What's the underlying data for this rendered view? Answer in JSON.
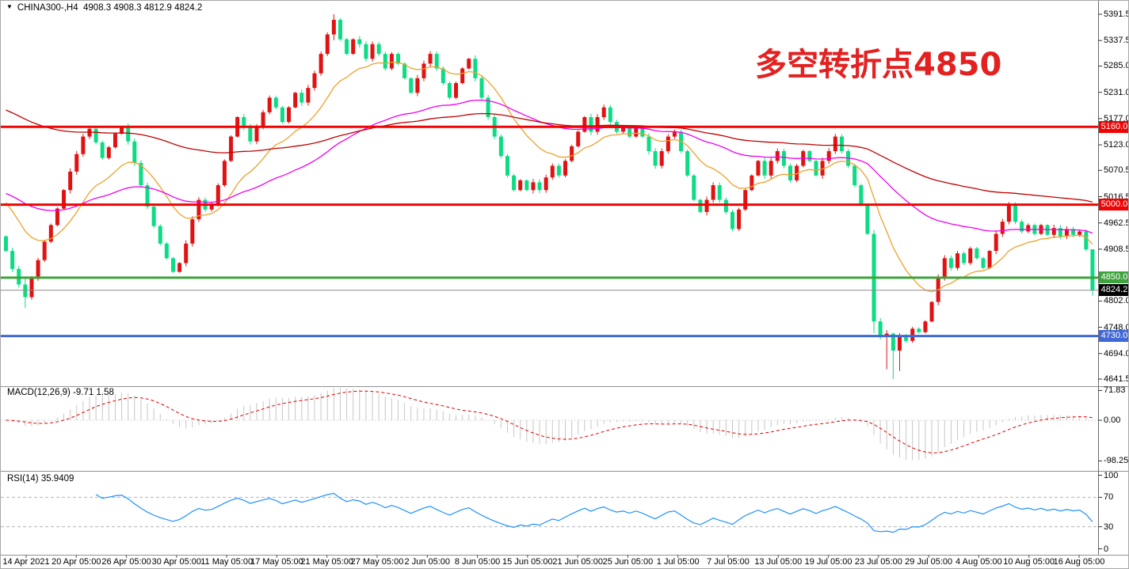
{
  "header": {
    "dropdown_icon": "▼",
    "symbol_timeframe": "CHINA300-,H4",
    "ohlc": "4908.3 4908.3 4812.9 4824.2"
  },
  "annotation": {
    "text": "多空转折点4850",
    "color": "#e32121"
  },
  "panels": {
    "macd": {
      "label": "MACD(12,26,9) -9.71 1.58"
    },
    "rsi": {
      "label": "RSI(14) 35.9409"
    }
  },
  "chart_data": {
    "type": "candlestick",
    "symbol": "CHINA300-",
    "timeframe": "H4",
    "current_bar": {
      "open": 4908.3,
      "high": 4908.3,
      "low": 4812.9,
      "close": 4824.2
    },
    "convention": "red = up candle, green = down candle",
    "first_open": 4935,
    "closes": [
      4905,
      4868,
      4836,
      4810,
      4848,
      4886,
      4924,
      4958,
      4992,
      5030,
      5068,
      5104,
      5140,
      5156,
      5128,
      5096,
      5118,
      5146,
      5160,
      5130,
      5086,
      5040,
      4996,
      4956,
      4920,
      4890,
      4862,
      4880,
      4920,
      4970,
      5010,
      4990,
      5000,
      5040,
      5090,
      5140,
      5180,
      5160,
      5130,
      5160,
      5190,
      5220,
      5200,
      5170,
      5200,
      5230,
      5210,
      5240,
      5270,
      5310,
      5350,
      5380,
      5340,
      5310,
      5340,
      5330,
      5300,
      5330,
      5310,
      5280,
      5310,
      5290,
      5260,
      5230,
      5260,
      5290,
      5310,
      5280,
      5250,
      5220,
      5250,
      5280,
      5300,
      5260,
      5220,
      5180,
      5140,
      5100,
      5060,
      5030,
      5050,
      5030,
      5046,
      5030,
      5056,
      5080,
      5060,
      5090,
      5120,
      5150,
      5180,
      5150,
      5180,
      5200,
      5170,
      5150,
      5160,
      5140,
      5160,
      5140,
      5110,
      5080,
      5110,
      5140,
      5150,
      5110,
      5060,
      5010,
      4985,
      5010,
      5040,
      5010,
      4985,
      4950,
      4990,
      5030,
      5060,
      5090,
      5060,
      5090,
      5110,
      5080,
      5050,
      5080,
      5110,
      5090,
      5060,
      5090,
      5110,
      5140,
      5110,
      5080,
      5040,
      5000,
      4940,
      4760,
      4730,
      4735,
      4700,
      4730,
      4720,
      4745,
      4738,
      4760,
      4800,
      4850,
      4890,
      4870,
      4900,
      4880,
      4910,
      4890,
      4870,
      4905,
      4940,
      4965,
      5000,
      4965,
      4945,
      4958,
      4940,
      4958,
      4938,
      4952,
      4935,
      4950,
      4938,
      4945,
      4908,
      4824.2
    ],
    "ohlc_overrides": {
      "3": [
        4836,
        4848,
        4788,
        4810
      ],
      "51": [
        5350,
        5391.5,
        5338,
        5380
      ],
      "135": [
        4940,
        4948,
        4736,
        4760
      ],
      "137": [
        4730,
        4742,
        4662,
        4735
      ],
      "138": [
        4735,
        4737,
        4641.5,
        4700
      ],
      "139": [
        4700,
        4736,
        4658,
        4730
      ],
      "169": [
        4908.3,
        4908.3,
        4812.9,
        4824.2
      ]
    },
    "price_axis": {
      "min": 4641.5,
      "max": 5391.5,
      "ticks": [
        "5391.5",
        "5337.5",
        "5285.0",
        "5231.0",
        "5177.0",
        "5123.0",
        "5070.5",
        "5016.5",
        "4962.5",
        "4908.5",
        "4802.0",
        "4748.0",
        "4694.0",
        "4641.5"
      ]
    },
    "levels": [
      {
        "name": "resistance-5160",
        "label": "5160.0",
        "price": 5160.0,
        "color": "#ee0404",
        "width": 3,
        "badge_bg": "#ee0404"
      },
      {
        "name": "support-5000",
        "label": "5000.0",
        "price": 5000.0,
        "color": "#ee0404",
        "width": 3,
        "badge_bg": "#ee0404"
      },
      {
        "name": "pivot-4850",
        "label": "4850.0",
        "price": 4850.0,
        "color": "#3da33d",
        "width": 3,
        "badge_bg": "#3da33d"
      },
      {
        "name": "current-price",
        "label": "4824.2",
        "price": 4824.2,
        "color": "#8c8c8c",
        "width": 1,
        "badge_bg": "#000000"
      },
      {
        "name": "support-4730",
        "label": "4730.0",
        "price": 4730.0,
        "color": "#4169d6",
        "width": 3,
        "badge_bg": "#4169d6"
      }
    ],
    "moving_averages": [
      {
        "name": "ma-fast",
        "period": 14,
        "seed": 5020,
        "color": "#eda12c"
      },
      {
        "name": "ma-mid",
        "period": 50,
        "seed": 5028,
        "color": "#f000f0"
      },
      {
        "name": "ma-slow",
        "period": 110,
        "seed": 5200,
        "color": "#c00000"
      }
    ],
    "macd": {
      "fast": 12,
      "slow": 26,
      "signal": 9,
      "current_main": -9.71,
      "current_signal": 1.58,
      "axis_ticks": [
        {
          "label": "71.83",
          "value": 71.83
        },
        {
          "label": "0.00",
          "value": 0
        },
        {
          "label": "-98.25",
          "value": -98.25
        }
      ],
      "hist_color": "#c6c6c6",
      "signal_color": "#e00000"
    },
    "rsi": {
      "period": 14,
      "current": 35.9409,
      "axis_ticks": [
        {
          "label": "100",
          "value": 100
        },
        {
          "label": "70",
          "value": 70
        },
        {
          "label": "30",
          "value": 30
        },
        {
          "label": "0",
          "value": 0
        }
      ],
      "level_lines": [
        70,
        30
      ],
      "line_color": "#1e90ff",
      "level_color": "#b5b5b5"
    },
    "time_axis": {
      "labels": [
        "14 Apr 2021",
        "20 Apr 05:00",
        "26 Apr 05:00",
        "30 Apr 05:00",
        "11 May 05:00",
        "17 May 05:00",
        "21 May 05:00",
        "27 May 05:00",
        "2 Jun 05:00",
        "8 Jun 05:00",
        "15 Jun 05:00",
        "21 Jun 05:00",
        "25 Jun 05:00",
        "1 Jul 05:00",
        "7 Jul 05:00",
        "13 Jul 05:00",
        "19 Jul 05:00",
        "23 Jul 05:00",
        "29 Jul 05:00",
        "4 Aug 05:00",
        "10 Aug 05:00",
        "16 Aug 05:00"
      ]
    },
    "colors": {
      "bull": "#e01212",
      "bear": "#0cdc84",
      "axis_text": "#000000",
      "separator": "#909090",
      "background": "#ffffff"
    }
  }
}
